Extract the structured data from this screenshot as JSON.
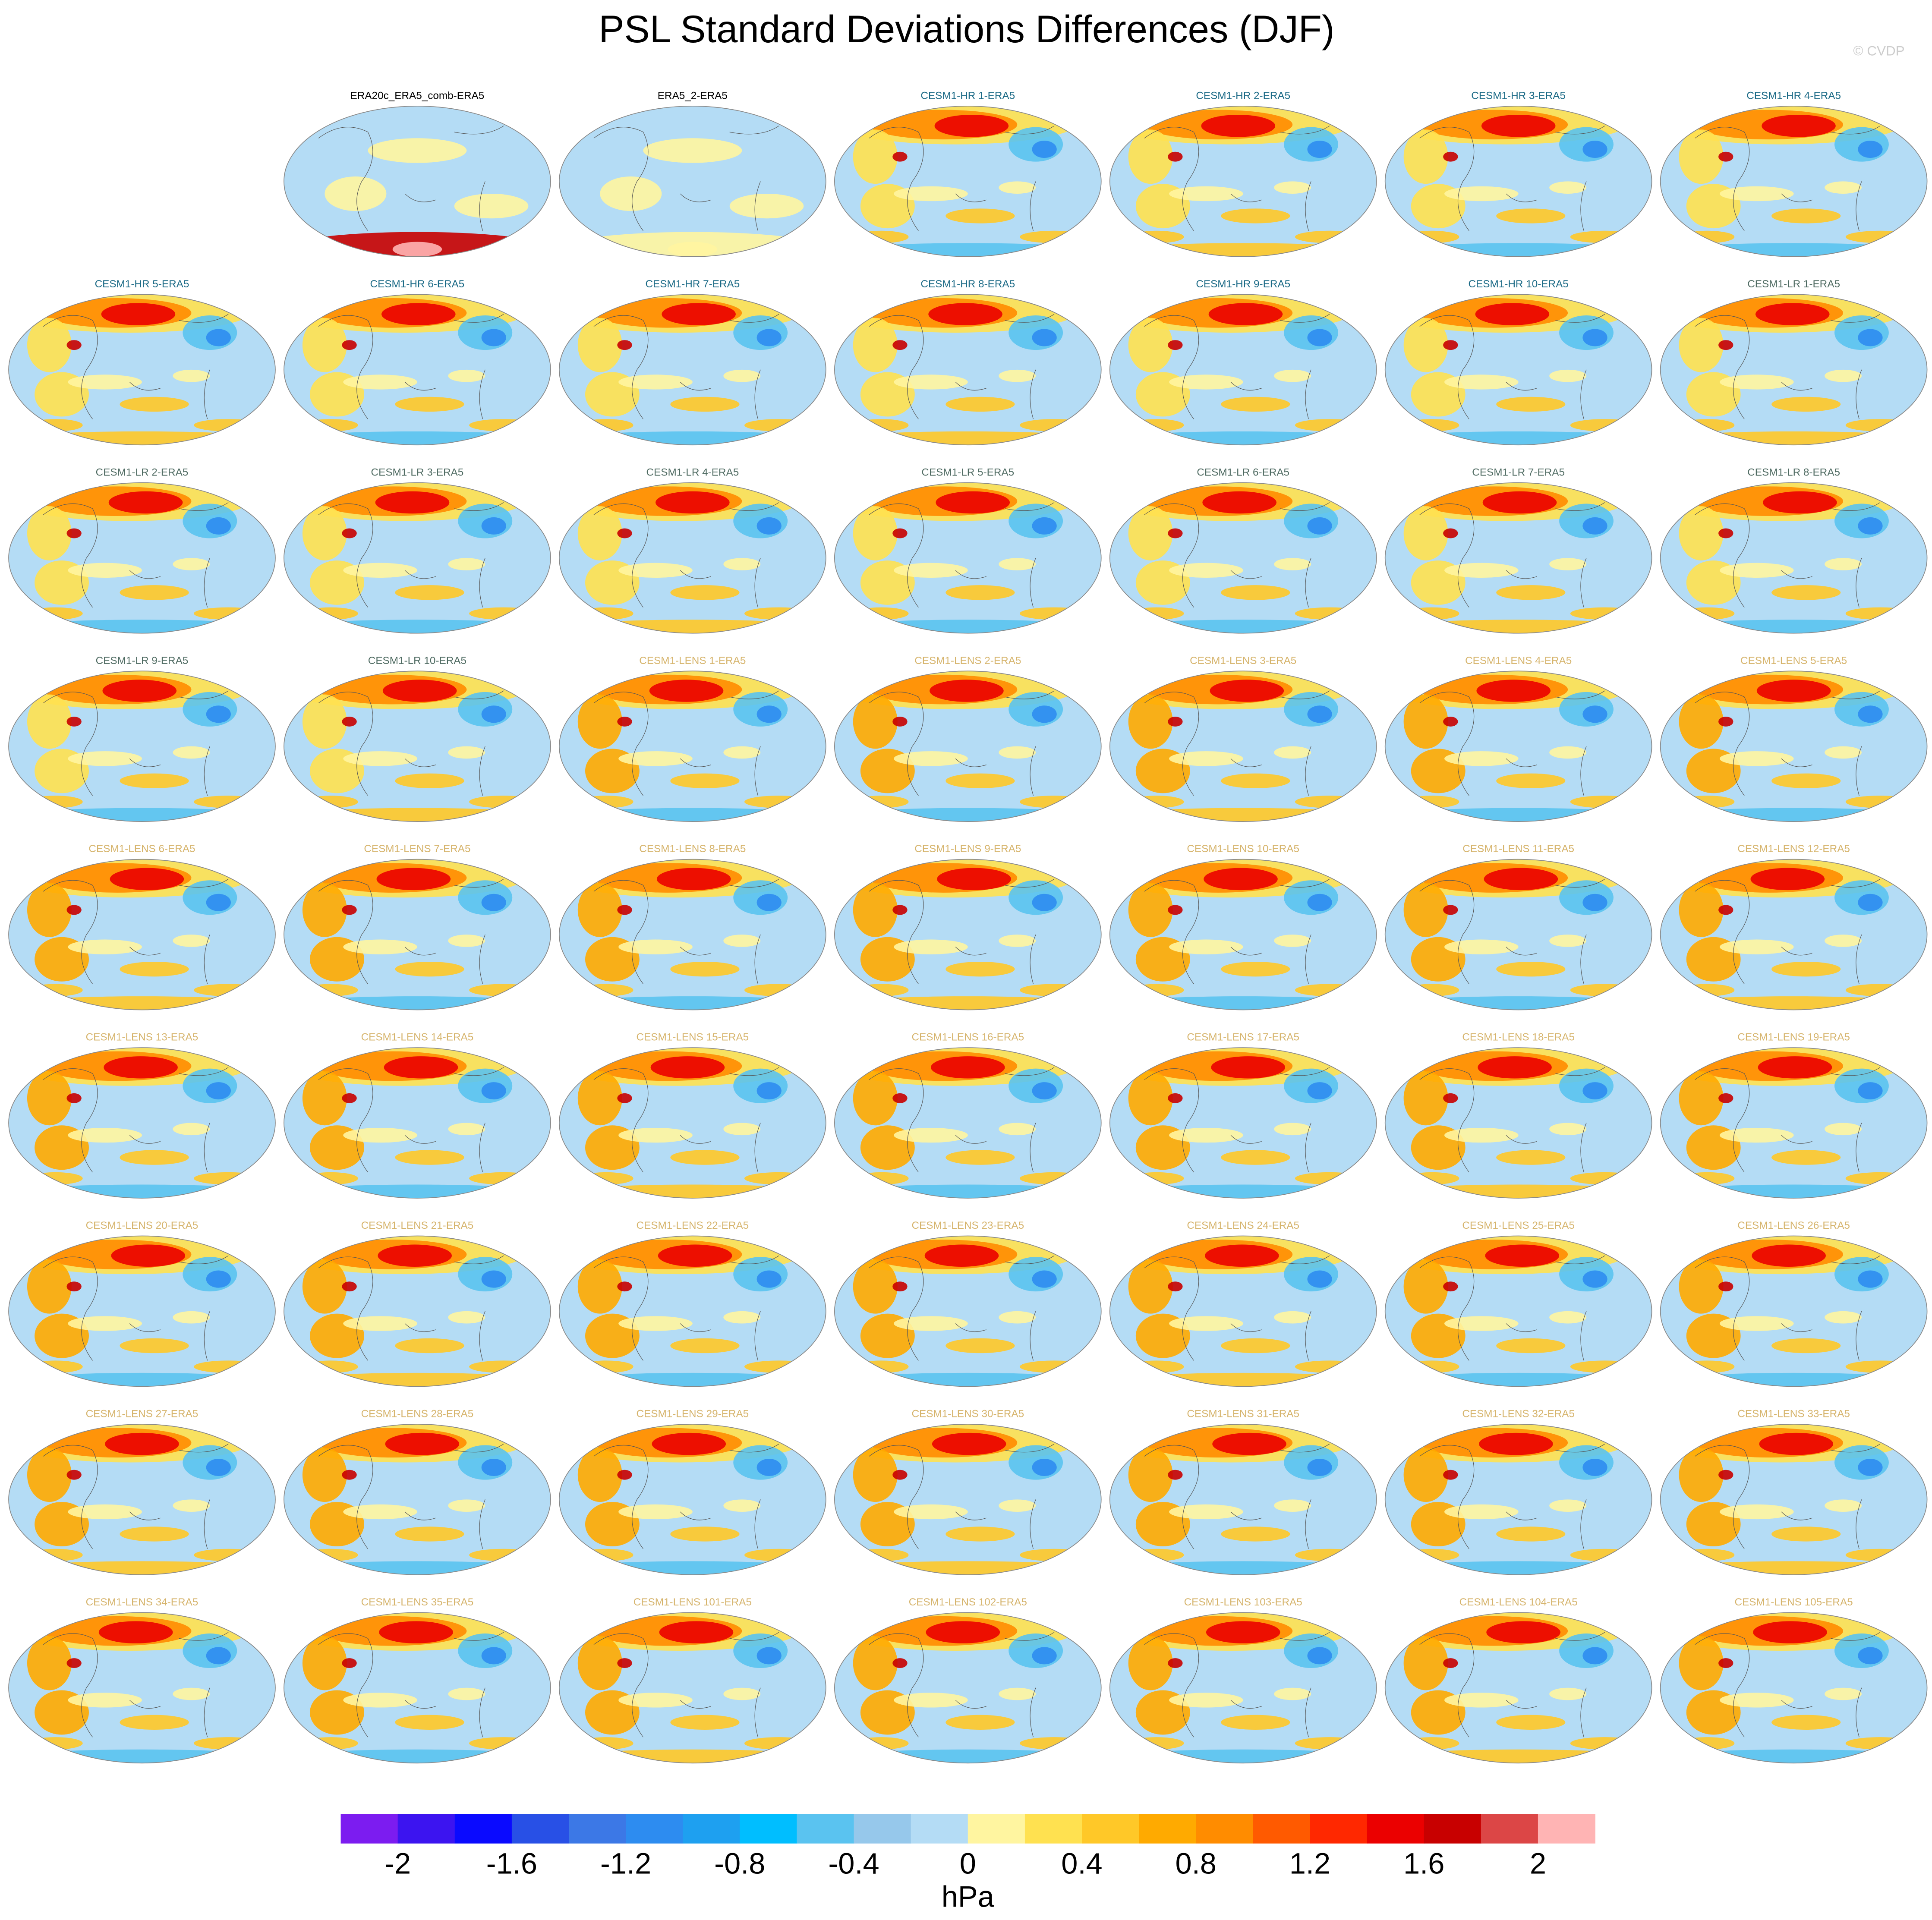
{
  "title": "PSL Standard Deviations Differences (DJF)",
  "watermark": "© CVDP",
  "panels": [
    {
      "label": "ERA20c_ERA5_comb-ERA5",
      "color": "#000000"
    },
    {
      "label": "ERA5_2-ERA5",
      "color": "#000000"
    },
    {
      "label": "CESM1-HR 1-ERA5",
      "color": "#1b6a86"
    },
    {
      "label": "CESM1-HR 2-ERA5",
      "color": "#1b6a86"
    },
    {
      "label": "CESM1-HR 3-ERA5",
      "color": "#1b6a86"
    },
    {
      "label": "CESM1-HR 4-ERA5",
      "color": "#1b6a86"
    },
    {
      "label": "CESM1-HR 5-ERA5",
      "color": "#1b6a86"
    },
    {
      "label": "CESM1-HR 6-ERA5",
      "color": "#1b6a86"
    },
    {
      "label": "CESM1-HR 7-ERA5",
      "color": "#1b6a86"
    },
    {
      "label": "CESM1-HR 8-ERA5",
      "color": "#1b6a86"
    },
    {
      "label": "CESM1-HR 9-ERA5",
      "color": "#1b6a86"
    },
    {
      "label": "CESM1-HR 10-ERA5",
      "color": "#1b6a86"
    },
    {
      "label": "CESM1-LR 1-ERA5",
      "color": "#4f6b62"
    },
    {
      "label": "CESM1-LR 2-ERA5",
      "color": "#4f6b62"
    },
    {
      "label": "CESM1-LR 3-ERA5",
      "color": "#4f6b62"
    },
    {
      "label": "CESM1-LR 4-ERA5",
      "color": "#4f6b62"
    },
    {
      "label": "CESM1-LR 5-ERA5",
      "color": "#4f6b62"
    },
    {
      "label": "CESM1-LR 6-ERA5",
      "color": "#4f6b62"
    },
    {
      "label": "CESM1-LR 7-ERA5",
      "color": "#4f6b62"
    },
    {
      "label": "CESM1-LR 8-ERA5",
      "color": "#4f6b62"
    },
    {
      "label": "CESM1-LR 9-ERA5",
      "color": "#4f6b62"
    },
    {
      "label": "CESM1-LR 10-ERA5",
      "color": "#4f6b62"
    },
    {
      "label": "CESM1-LENS 1-ERA5",
      "color": "#d6b46c"
    },
    {
      "label": "CESM1-LENS 2-ERA5",
      "color": "#d6b46c"
    },
    {
      "label": "CESM1-LENS 3-ERA5",
      "color": "#d6b46c"
    },
    {
      "label": "CESM1-LENS 4-ERA5",
      "color": "#d6b46c"
    },
    {
      "label": "CESM1-LENS 5-ERA5",
      "color": "#d6b46c"
    },
    {
      "label": "CESM1-LENS 6-ERA5",
      "color": "#d6b46c"
    },
    {
      "label": "CESM1-LENS 7-ERA5",
      "color": "#d6b46c"
    },
    {
      "label": "CESM1-LENS 8-ERA5",
      "color": "#d6b46c"
    },
    {
      "label": "CESM1-LENS 9-ERA5",
      "color": "#d6b46c"
    },
    {
      "label": "CESM1-LENS 10-ERA5",
      "color": "#d6b46c"
    },
    {
      "label": "CESM1-LENS 11-ERA5",
      "color": "#d6b46c"
    },
    {
      "label": "CESM1-LENS 12-ERA5",
      "color": "#d6b46c"
    },
    {
      "label": "CESM1-LENS 13-ERA5",
      "color": "#d6b46c"
    },
    {
      "label": "CESM1-LENS 14-ERA5",
      "color": "#d6b46c"
    },
    {
      "label": "CESM1-LENS 15-ERA5",
      "color": "#d6b46c"
    },
    {
      "label": "CESM1-LENS 16-ERA5",
      "color": "#d6b46c"
    },
    {
      "label": "CESM1-LENS 17-ERA5",
      "color": "#d6b46c"
    },
    {
      "label": "CESM1-LENS 18-ERA5",
      "color": "#d6b46c"
    },
    {
      "label": "CESM1-LENS 19-ERA5",
      "color": "#d6b46c"
    },
    {
      "label": "CESM1-LENS 20-ERA5",
      "color": "#d6b46c"
    },
    {
      "label": "CESM1-LENS 21-ERA5",
      "color": "#d6b46c"
    },
    {
      "label": "CESM1-LENS 22-ERA5",
      "color": "#d6b46c"
    },
    {
      "label": "CESM1-LENS 23-ERA5",
      "color": "#d6b46c"
    },
    {
      "label": "CESM1-LENS 24-ERA5",
      "color": "#d6b46c"
    },
    {
      "label": "CESM1-LENS 25-ERA5",
      "color": "#d6b46c"
    },
    {
      "label": "CESM1-LENS 26-ERA5",
      "color": "#d6b46c"
    },
    {
      "label": "CESM1-LENS 27-ERA5",
      "color": "#d6b46c"
    },
    {
      "label": "CESM1-LENS 28-ERA5",
      "color": "#d6b46c"
    },
    {
      "label": "CESM1-LENS 29-ERA5",
      "color": "#d6b46c"
    },
    {
      "label": "CESM1-LENS 30-ERA5",
      "color": "#d6b46c"
    },
    {
      "label": "CESM1-LENS 31-ERA5",
      "color": "#d6b46c"
    },
    {
      "label": "CESM1-LENS 32-ERA5",
      "color": "#d6b46c"
    },
    {
      "label": "CESM1-LENS 33-ERA5",
      "color": "#d6b46c"
    },
    {
      "label": "CESM1-LENS 34-ERA5",
      "color": "#d6b46c"
    },
    {
      "label": "CESM1-LENS 35-ERA5",
      "color": "#d6b46c"
    },
    {
      "label": "CESM1-LENS 101-ERA5",
      "color": "#d6b46c"
    },
    {
      "label": "CESM1-LENS 102-ERA5",
      "color": "#d6b46c"
    },
    {
      "label": "CESM1-LENS 103-ERA5",
      "color": "#d6b46c"
    },
    {
      "label": "CESM1-LENS 104-ERA5",
      "color": "#d6b46c"
    },
    {
      "label": "CESM1-LENS 105-ERA5",
      "color": "#d6b46c"
    }
  ],
  "colorbar": {
    "unit": "hPa",
    "levels": [
      -2,
      -1.8,
      -1.6,
      -1.4,
      -1.2,
      -1,
      -0.8,
      -0.6,
      -0.4,
      -0.2,
      0,
      0.2,
      0.4,
      0.6,
      0.8,
      1,
      1.2,
      1.4,
      1.6,
      1.8,
      2
    ],
    "colors": [
      "#7c1cf0",
      "#3c14f0",
      "#0a0aff",
      "#2850e6",
      "#3c78e6",
      "#2d8cf0",
      "#1ea0f0",
      "#00beff",
      "#5ac3f0",
      "#96c8eb",
      "#b4dcf5",
      "#fff5a0",
      "#ffe150",
      "#ffc828",
      "#ffaa00",
      "#ff8c00",
      "#ff5a00",
      "#ff2800",
      "#eb0000",
      "#c80000",
      "#dc4646",
      "#ffb4b4"
    ],
    "ticks": [
      -2,
      -1.6,
      -1.2,
      -0.8,
      -0.4,
      0,
      0.4,
      0.8,
      1.2,
      1.6,
      2
    ]
  }
}
